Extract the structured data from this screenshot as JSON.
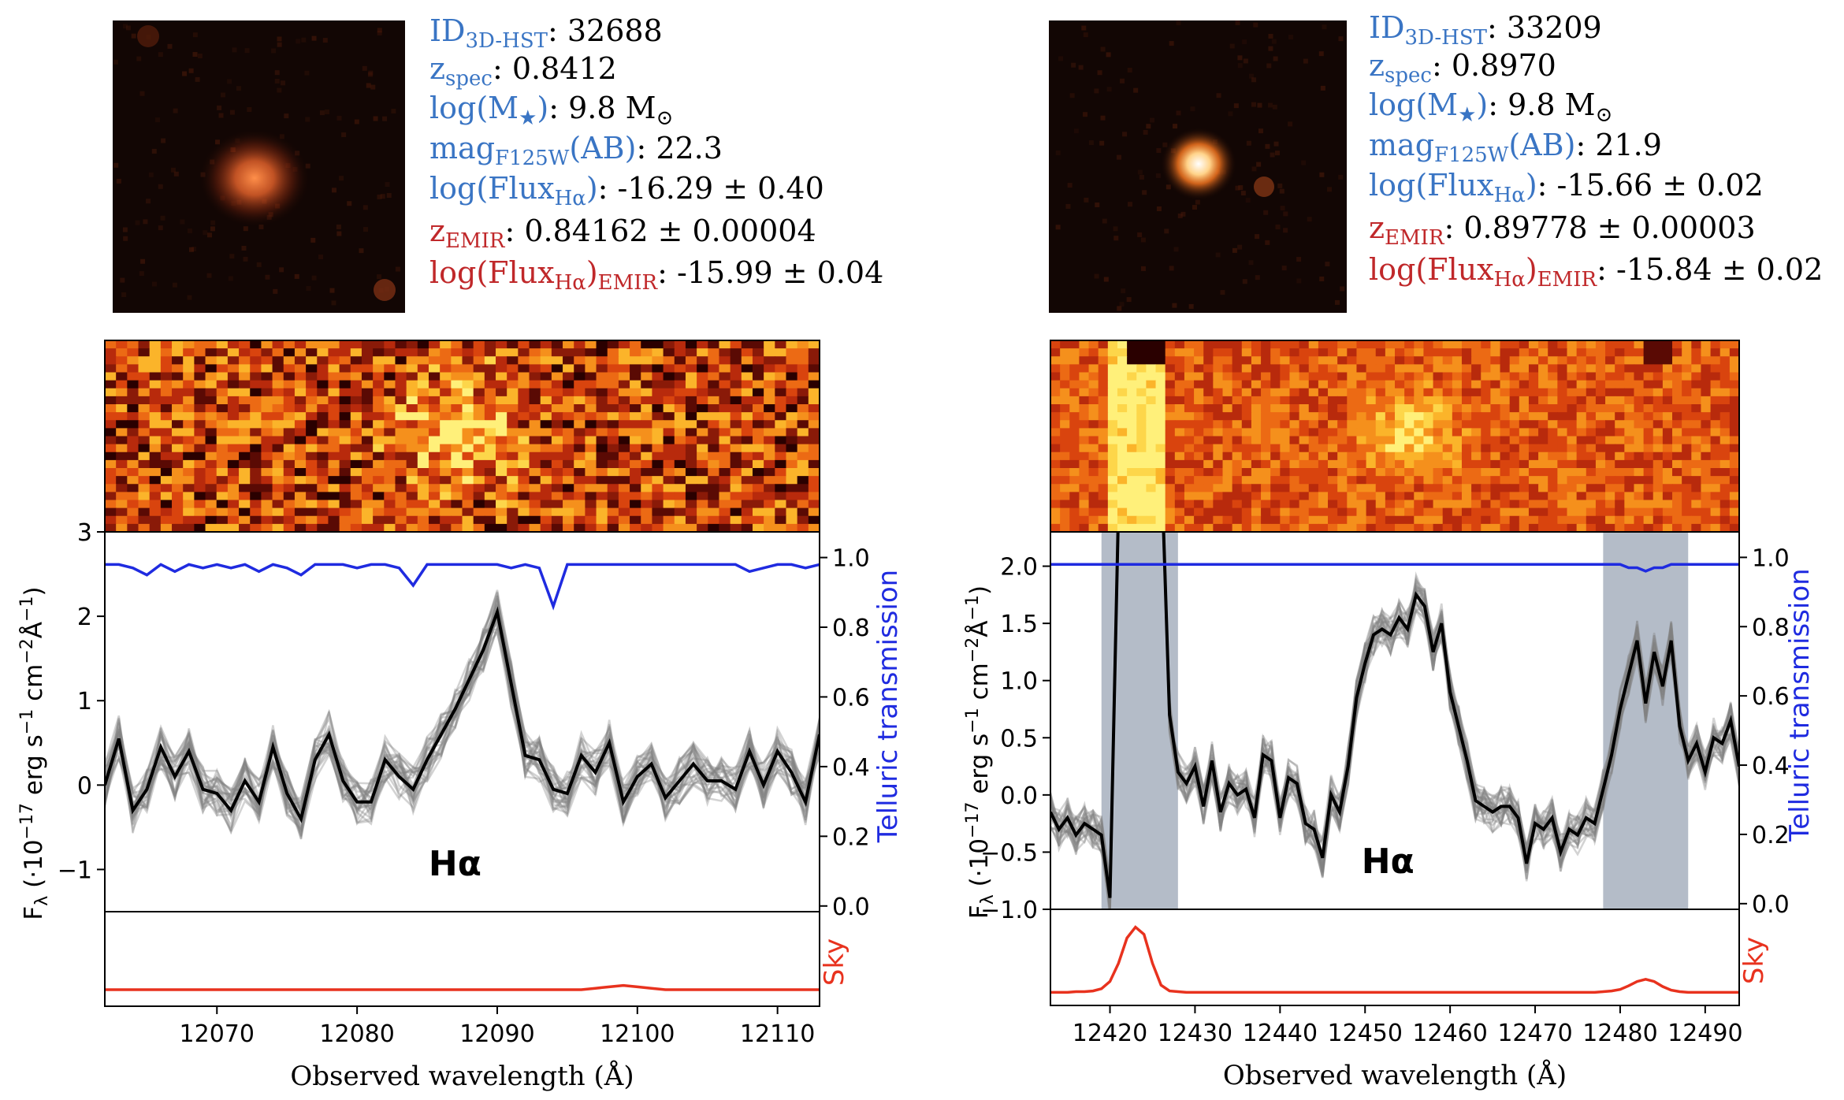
{
  "panels": [
    {
      "info": {
        "id_label": "ID",
        "id_sub": "3D-HST",
        "id_value": ": 32688",
        "z_label": "z",
        "z_sub": "spec",
        "z_value": ": 0.8412",
        "mass_label": "log(M",
        "mass_star": "★",
        "mass_close": ")",
        "mass_value": ": 9.8 M",
        "mass_sun": "⊙",
        "mag_label": "mag",
        "mag_sub": "F125W",
        "mag_ab": "(AB)",
        "mag_value": ": 22.3",
        "flux_label": "log(Flux",
        "flux_sub": "Hα",
        "flux_close": ")",
        "flux_value": ":  -16.29 ± 0.40",
        "zemir_label": "z",
        "zemir_sub": "EMIR",
        "zemir_value": ":  0.84162 ± 0.00004",
        "femir_label": "log(Flux",
        "femir_sub": "Hα",
        "femir_mid": ")",
        "femir_sub2": "EMIR",
        "femir_value": ":  -15.99 ± 0.04"
      },
      "chart_data": {
        "type": "line",
        "line_label": "Hα",
        "xlim": [
          12062,
          12113
        ],
        "ylim": [
          -1.5,
          3.0
        ],
        "x_ticks": [
          12070,
          12080,
          12090,
          12100,
          12110
        ],
        "y_ticks": [
          -1,
          0,
          1,
          2,
          3
        ],
        "y2_ticks": [
          "0.0",
          "0.2",
          "0.4",
          "0.6",
          "0.8",
          "1.0"
        ],
        "xlabel": "Observed wavelength (Å)",
        "ylabel": "F_λ (·10^-17 erg s^-1 cm^-2 Å^-1)",
        "y2label": "Telluric transmission",
        "skylabel": "Sky",
        "masked_regions": [],
        "x": [
          12062,
          12063,
          12064,
          12065,
          12066,
          12067,
          12068,
          12069,
          12070,
          12071,
          12072,
          12073,
          12074,
          12075,
          12076,
          12077,
          12078,
          12079,
          12080,
          12081,
          12082,
          12083,
          12084,
          12085,
          12086,
          12087,
          12088,
          12089,
          12090,
          12091,
          12092,
          12093,
          12094,
          12095,
          12096,
          12097,
          12098,
          12099,
          12100,
          12101,
          12102,
          12103,
          12104,
          12105,
          12106,
          12107,
          12108,
          12109,
          12110,
          12111,
          12112,
          12113
        ],
        "flux": [
          0.0,
          0.55,
          -0.3,
          -0.05,
          0.45,
          0.1,
          0.4,
          -0.05,
          -0.1,
          -0.3,
          0.05,
          -0.2,
          0.45,
          -0.1,
          -0.4,
          0.3,
          0.6,
          0.05,
          -0.2,
          -0.2,
          0.3,
          0.1,
          -0.05,
          0.3,
          0.6,
          0.9,
          1.25,
          1.6,
          2.05,
          1.2,
          0.35,
          0.3,
          -0.05,
          -0.1,
          0.35,
          0.15,
          0.5,
          -0.2,
          0.1,
          0.25,
          -0.15,
          0.05,
          0.25,
          0.05,
          0.05,
          -0.05,
          0.4,
          0.0,
          0.4,
          0.15,
          -0.2,
          0.6
        ],
        "telluric": [
          0.98,
          0.98,
          0.97,
          0.95,
          0.98,
          0.96,
          0.98,
          0.97,
          0.98,
          0.97,
          0.98,
          0.96,
          0.98,
          0.97,
          0.95,
          0.98,
          0.98,
          0.98,
          0.97,
          0.98,
          0.98,
          0.97,
          0.92,
          0.98,
          0.98,
          0.98,
          0.98,
          0.98,
          0.98,
          0.97,
          0.98,
          0.97,
          0.86,
          0.98,
          0.98,
          0.98,
          0.98,
          0.98,
          0.98,
          0.98,
          0.98,
          0.98,
          0.98,
          0.98,
          0.98,
          0.98,
          0.96,
          0.97,
          0.98,
          0.98,
          0.97,
          0.98
        ],
        "sky": [
          0.1,
          0.1,
          0.1,
          0.1,
          0.1,
          0.1,
          0.1,
          0.1,
          0.1,
          0.1,
          0.1,
          0.1,
          0.1,
          0.1,
          0.1,
          0.1,
          0.1,
          0.1,
          0.1,
          0.1,
          0.1,
          0.1,
          0.1,
          0.1,
          0.1,
          0.1,
          0.1,
          0.1,
          0.1,
          0.1,
          0.1,
          0.1,
          0.1,
          0.1,
          0.1,
          0.12,
          0.14,
          0.16,
          0.14,
          0.12,
          0.1,
          0.1,
          0.1,
          0.1,
          0.1,
          0.1,
          0.1,
          0.1,
          0.1,
          0.1,
          0.1,
          0.1
        ]
      }
    },
    {
      "info": {
        "id_label": "ID",
        "id_sub": "3D-HST",
        "id_value": ": 33209",
        "z_label": "z",
        "z_sub": "spec",
        "z_value": ": 0.8970",
        "mass_label": "log(M",
        "mass_star": "★",
        "mass_close": ")",
        "mass_value": ": 9.8 M",
        "mass_sun": "⊙",
        "mag_label": "mag",
        "mag_sub": "F125W",
        "mag_ab": "(AB)",
        "mag_value": ": 21.9",
        "flux_label": "log(Flux",
        "flux_sub": "Hα",
        "flux_close": ")",
        "flux_value": ":  -15.66 ± 0.02",
        "zemir_label": "z",
        "zemir_sub": "EMIR",
        "zemir_value": ":  0.89778 ± 0.00003",
        "femir_label": "log(Flux",
        "femir_sub": "Hα",
        "femir_mid": ")",
        "femir_sub2": "EMIR",
        "femir_value": ":  -15.84 ± 0.02"
      },
      "chart_data": {
        "type": "line",
        "line_label": "Hα",
        "xlim": [
          12413,
          12494
        ],
        "ylim": [
          -1.0,
          2.3
        ],
        "x_ticks": [
          12420,
          12430,
          12440,
          12450,
          12460,
          12470,
          12480,
          12490
        ],
        "y_ticks": [
          "−1.0",
          "−0.5",
          "0.0",
          "0.5",
          "1.0",
          "1.5",
          "2.0"
        ],
        "y2_ticks": [
          "0.0",
          "0.2",
          "0.4",
          "0.6",
          "0.8",
          "1.0"
        ],
        "xlabel": "Observed wavelength (Å)",
        "ylabel": "F_λ (·10^-17 erg s^-1 cm^-2 Å^-1)",
        "y2label": "Telluric transmission",
        "skylabel": "Sky",
        "masked_regions": [
          [
            12419,
            12428
          ],
          [
            12478,
            12488
          ]
        ],
        "x": [
          12413,
          12414,
          12415,
          12416,
          12417,
          12418,
          12419,
          12420,
          12421,
          12422,
          12423,
          12424,
          12425,
          12426,
          12427,
          12428,
          12429,
          12430,
          12431,
          12432,
          12433,
          12434,
          12435,
          12436,
          12437,
          12438,
          12439,
          12440,
          12441,
          12442,
          12443,
          12444,
          12445,
          12446,
          12447,
          12448,
          12449,
          12450,
          12451,
          12452,
          12453,
          12454,
          12455,
          12456,
          12457,
          12458,
          12459,
          12460,
          12461,
          12462,
          12463,
          12464,
          12465,
          12466,
          12467,
          12468,
          12469,
          12470,
          12471,
          12472,
          12473,
          12474,
          12475,
          12476,
          12477,
          12478,
          12479,
          12480,
          12481,
          12482,
          12483,
          12484,
          12485,
          12486,
          12487,
          12488,
          12489,
          12490,
          12491,
          12492,
          12493,
          12494
        ],
        "flux": [
          -0.15,
          -0.3,
          -0.2,
          -0.35,
          -0.25,
          -0.3,
          -0.35,
          -0.9,
          2.5,
          3.0,
          3.0,
          3.0,
          3.0,
          3.0,
          0.7,
          0.2,
          0.1,
          0.25,
          -0.1,
          0.3,
          -0.15,
          0.1,
          0.0,
          0.05,
          -0.2,
          0.35,
          0.3,
          -0.2,
          0.15,
          0.1,
          -0.25,
          -0.3,
          -0.55,
          0.0,
          -0.15,
          0.25,
          0.85,
          1.15,
          1.4,
          1.45,
          1.4,
          1.55,
          1.45,
          1.75,
          1.65,
          1.25,
          1.5,
          0.9,
          0.6,
          0.3,
          -0.05,
          -0.1,
          -0.15,
          -0.1,
          -0.1,
          -0.2,
          -0.6,
          -0.25,
          -0.3,
          -0.2,
          -0.5,
          -0.3,
          -0.35,
          -0.2,
          -0.25,
          0.05,
          0.35,
          0.75,
          1.05,
          1.35,
          0.8,
          1.25,
          0.95,
          1.35,
          0.6,
          0.3,
          0.45,
          0.2,
          0.5,
          0.45,
          0.65,
          0.25
        ],
        "telluric": [
          0.98,
          0.98,
          0.98,
          0.98,
          0.98,
          0.98,
          0.98,
          0.98,
          0.98,
          0.98,
          0.98,
          0.98,
          0.98,
          0.98,
          0.98,
          0.98,
          0.98,
          0.98,
          0.98,
          0.98,
          0.98,
          0.98,
          0.98,
          0.98,
          0.98,
          0.98,
          0.98,
          0.98,
          0.98,
          0.98,
          0.98,
          0.98,
          0.98,
          0.98,
          0.98,
          0.98,
          0.98,
          0.98,
          0.98,
          0.98,
          0.98,
          0.98,
          0.98,
          0.98,
          0.98,
          0.98,
          0.98,
          0.98,
          0.98,
          0.98,
          0.98,
          0.98,
          0.98,
          0.98,
          0.98,
          0.98,
          0.98,
          0.98,
          0.98,
          0.98,
          0.98,
          0.98,
          0.98,
          0.98,
          0.98,
          0.98,
          0.98,
          0.98,
          0.97,
          0.97,
          0.96,
          0.97,
          0.97,
          0.98,
          0.98,
          0.98,
          0.98,
          0.98,
          0.98,
          0.98,
          0.98,
          0.98
        ],
        "sky": [
          0.05,
          0.05,
          0.05,
          0.06,
          0.06,
          0.07,
          0.1,
          0.2,
          0.45,
          0.8,
          0.95,
          0.85,
          0.45,
          0.15,
          0.07,
          0.06,
          0.05,
          0.05,
          0.05,
          0.05,
          0.05,
          0.05,
          0.05,
          0.05,
          0.05,
          0.05,
          0.05,
          0.05,
          0.05,
          0.05,
          0.05,
          0.05,
          0.05,
          0.05,
          0.05,
          0.05,
          0.05,
          0.05,
          0.05,
          0.05,
          0.05,
          0.05,
          0.05,
          0.05,
          0.05,
          0.05,
          0.05,
          0.05,
          0.05,
          0.05,
          0.05,
          0.05,
          0.05,
          0.05,
          0.05,
          0.05,
          0.05,
          0.05,
          0.05,
          0.05,
          0.05,
          0.05,
          0.05,
          0.05,
          0.05,
          0.06,
          0.07,
          0.09,
          0.14,
          0.2,
          0.23,
          0.2,
          0.13,
          0.08,
          0.06,
          0.05,
          0.05,
          0.05,
          0.05,
          0.05,
          0.05,
          0.05
        ]
      }
    }
  ],
  "colors": {
    "blue_label": "#3a75c4",
    "red_label": "#c0282a",
    "telluric": "#1f2be0",
    "sky": "#e8321e",
    "flux": "#000000",
    "mc": "#808080",
    "mask": "#a7b0be"
  }
}
